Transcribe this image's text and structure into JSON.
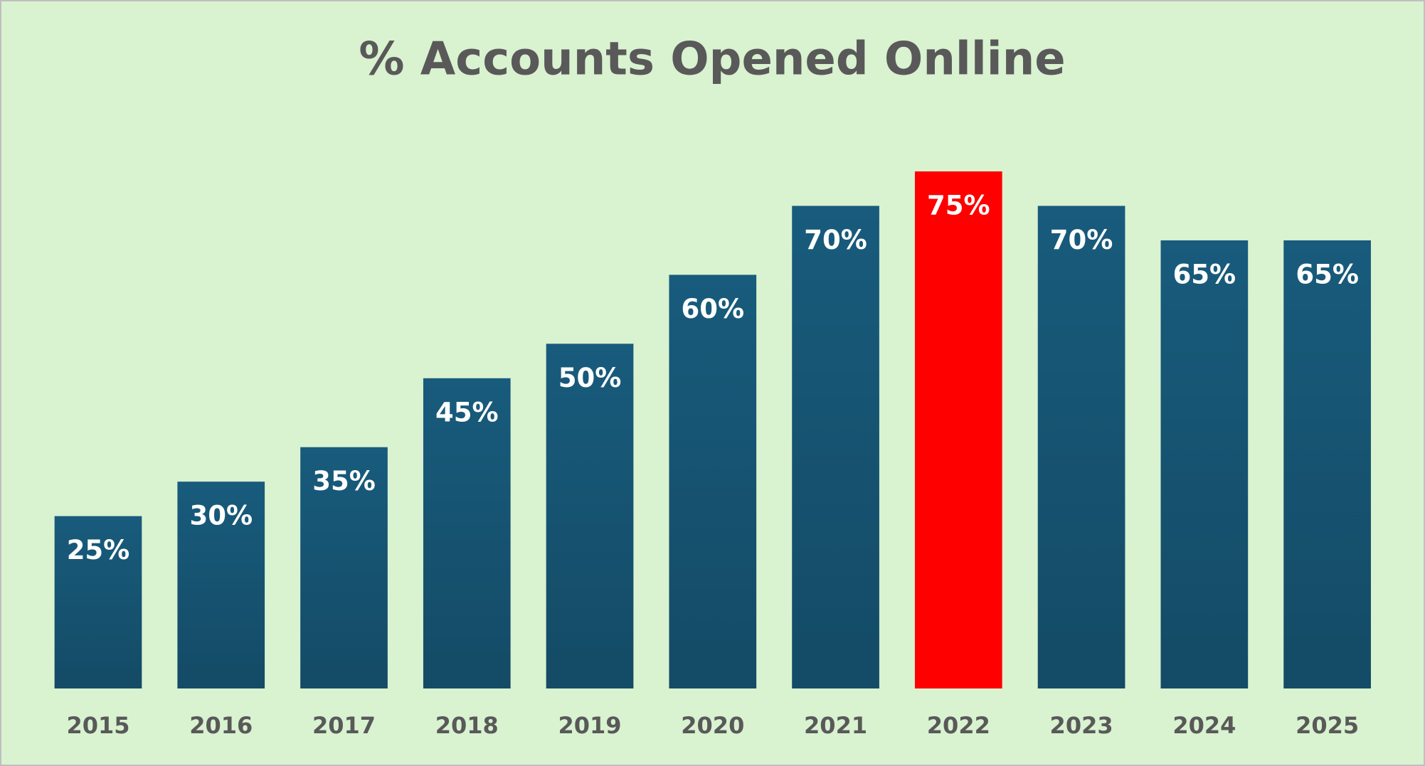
{
  "chart_data": {
    "type": "bar",
    "title": "% Accounts Opened Onlline",
    "categories": [
      "2015",
      "2016",
      "2017",
      "2018",
      "2019",
      "2020",
      "2021",
      "2022",
      "2023",
      "2024",
      "2025"
    ],
    "values": [
      25,
      30,
      35,
      45,
      50,
      60,
      70,
      75,
      70,
      65,
      65
    ],
    "value_labels": [
      "25%",
      "30%",
      "35%",
      "45%",
      "50%",
      "60%",
      "70%",
      "75%",
      "70%",
      "65%",
      "65%"
    ],
    "colors": [
      "#185b7c",
      "#185b7c",
      "#185b7c",
      "#185b7c",
      "#185b7c",
      "#185b7c",
      "#185b7c",
      "#ff0000",
      "#185b7c",
      "#185b7c",
      "#185b7c"
    ]
  }
}
